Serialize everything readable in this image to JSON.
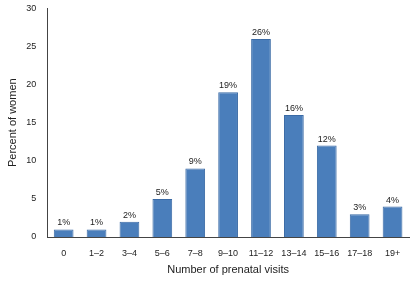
{
  "chart_data": {
    "type": "bar",
    "categories": [
      "0",
      "1–2",
      "3–4",
      "5–6",
      "7–8",
      "9–10",
      "11–12",
      "13–14",
      "15–16",
      "17–18",
      "19+"
    ],
    "values": [
      1,
      1,
      2,
      5,
      9,
      19,
      26,
      16,
      12,
      3,
      4
    ],
    "value_labels": [
      "1%",
      "1%",
      "2%",
      "5%",
      "9%",
      "19%",
      "26%",
      "16%",
      "12%",
      "3%",
      "4%"
    ],
    "data_labels": true,
    "color": "#4a7ebb",
    "x_label": "Number of prenatal visits",
    "y_label": "Percent of women",
    "ylim": [
      0,
      30
    ],
    "yticks": [
      0,
      5,
      10,
      15,
      20,
      25,
      30
    ],
    "grid": false
  }
}
